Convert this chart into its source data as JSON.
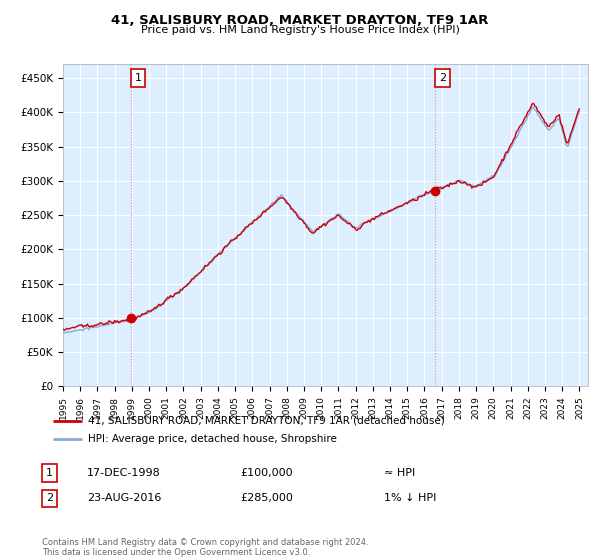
{
  "title": "41, SALISBURY ROAD, MARKET DRAYTON, TF9 1AR",
  "subtitle": "Price paid vs. HM Land Registry's House Price Index (HPI)",
  "ylabel_ticks": [
    "£0",
    "£50K",
    "£100K",
    "£150K",
    "£200K",
    "£250K",
    "£300K",
    "£350K",
    "£400K",
    "£450K"
  ],
  "ylim": [
    0,
    470000
  ],
  "yticks": [
    0,
    50000,
    100000,
    150000,
    200000,
    250000,
    300000,
    350000,
    400000,
    450000
  ],
  "xmin": 1995.0,
  "xmax": 2025.5,
  "legend_line1": "41, SALISBURY ROAD, MARKET DRAYTON, TF9 1AR (detached house)",
  "legend_line2": "HPI: Average price, detached house, Shropshire",
  "marker1_x": 1998.96,
  "marker1_y": 100000,
  "marker1_label": "1",
  "marker1_date": "17-DEC-1998",
  "marker1_price": "£100,000",
  "marker1_hpi": "≈ HPI",
  "marker2_x": 2016.64,
  "marker2_y": 285000,
  "marker2_label": "2",
  "marker2_date": "23-AUG-2016",
  "marker2_price": "£285,000",
  "marker2_hpi": "1% ↓ HPI",
  "footer": "Contains HM Land Registry data © Crown copyright and database right 2024.\nThis data is licensed under the Open Government Licence v3.0.",
  "hpi_color": "#88aadd",
  "price_color": "#cc0000",
  "bg_color": "#ddeeff",
  "vline_color": "#cc9999"
}
